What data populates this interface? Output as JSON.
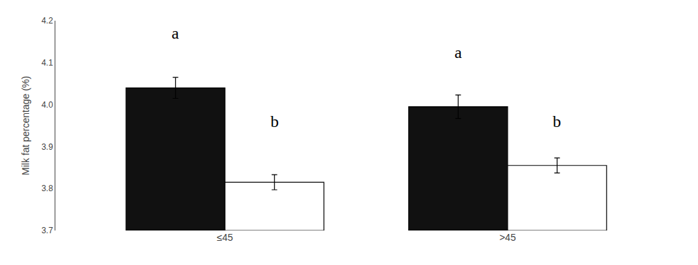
{
  "chart_data": {
    "type": "bar",
    "ylabel": "Milk fat percentage (%)",
    "categories": [
      "≤45",
      ">45"
    ],
    "series": [
      {
        "color": "#111111",
        "values": [
          4.04,
          3.995
        ],
        "errors": [
          0.025,
          0.028
        ]
      },
      {
        "color": "#ffffff",
        "values": [
          3.815,
          3.855
        ],
        "errors": [
          0.018,
          0.018
        ]
      }
    ],
    "ylim": [
      3.7,
      4.2
    ],
    "yticks": [
      3.7,
      3.8,
      3.9,
      {
        "value": 4.0,
        "label": "4.0"
      },
      4.1,
      4.2
    ],
    "grid": false,
    "annotations": [
      {
        "text": "a",
        "category": 0,
        "series": 0,
        "y": 4.145
      },
      {
        "text": "b",
        "category": 0,
        "series": 1,
        "y": 3.935
      },
      {
        "text": "a",
        "category": 1,
        "series": 0,
        "y": 4.1
      },
      {
        "text": "b",
        "category": 1,
        "series": 1,
        "y": 3.935
      }
    ]
  }
}
